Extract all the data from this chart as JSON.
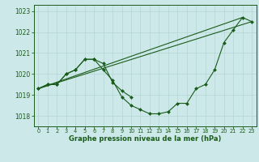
{
  "xlabel": "Graphe pression niveau de la mer (hPa)",
  "background_color": "#cce8e8",
  "grid_color": "#b8d8d8",
  "line_color": "#1a5c1a",
  "marker_color": "#1a5c1a",
  "ylim": [
    1017.5,
    1023.3
  ],
  "yticks": [
    1018,
    1019,
    1020,
    1021,
    1022,
    1023
  ],
  "xlim": [
    -0.5,
    23.5
  ],
  "xticks": [
    0,
    1,
    2,
    3,
    4,
    5,
    6,
    7,
    8,
    9,
    10,
    11,
    12,
    13,
    14,
    15,
    16,
    17,
    18,
    19,
    20,
    21,
    22,
    23
  ],
  "series1": [
    1019.3,
    1019.5,
    1019.5,
    1020.0,
    1020.2,
    1020.7,
    1020.7,
    1020.2,
    1019.7,
    1018.9,
    1018.5,
    1018.3,
    1018.1,
    1018.1,
    1018.2,
    1018.6,
    1018.6,
    1019.3,
    1019.5,
    1020.2,
    1021.5,
    1022.1,
    1022.7,
    1022.5
  ],
  "series2": [
    1019.3,
    1019.5,
    1019.5,
    1020.0,
    1020.2,
    1020.7,
    1020.7,
    1020.5,
    1019.6,
    1019.2,
    1018.9
  ],
  "trend_line": [
    [
      0,
      1019.3
    ],
    [
      22,
      1022.7
    ]
  ],
  "trend_line2": [
    [
      0,
      1019.3
    ],
    [
      23,
      1022.5
    ]
  ]
}
